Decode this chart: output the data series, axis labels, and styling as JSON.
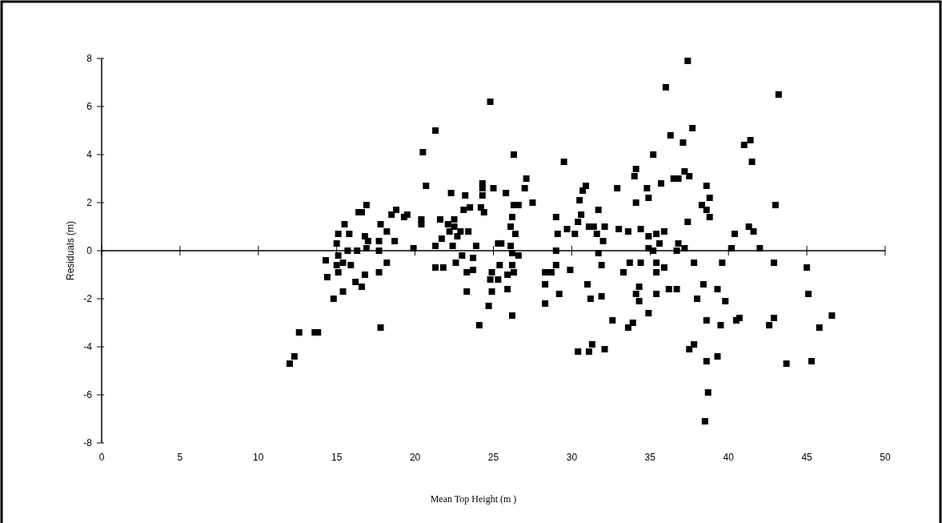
{
  "chart_data": {
    "type": "scatter",
    "xlabel": "Mean Top Height (m )",
    "ylabel": "Residuals (m)",
    "xlim": [
      0,
      50
    ],
    "xticks": [
      0,
      5,
      10,
      15,
      20,
      25,
      30,
      35,
      40,
      45,
      50
    ],
    "ylim": [
      -8,
      8
    ],
    "yticks": [
      -8,
      -6,
      -4,
      -2,
      0,
      2,
      4,
      6,
      8
    ],
    "marker": "square",
    "series": [
      {
        "color": "#000000",
        "x": [
          12.0,
          12.3,
          12.6,
          13.6,
          13.8,
          14.3,
          14.4,
          14.8,
          15.4,
          15.1,
          15.0,
          15.1,
          15.5,
          15.8,
          15.7,
          15.0,
          15.4,
          15.9,
          15.1,
          16.3,
          16.2,
          16.4,
          16.9,
          16.6,
          16.8,
          17.0,
          17.7,
          16.9,
          17.7,
          18.2,
          17.8,
          18.7,
          18.5,
          18.8,
          19.3,
          19.5,
          18.2,
          17.7,
          16.8,
          16.6,
          17.8,
          19.9,
          20.4,
          20.4,
          20.7,
          20.5,
          21.3,
          21.6,
          21.7,
          21.3,
          21.3,
          21.8,
          22.3,
          22.1,
          22.5,
          22.2,
          22.5,
          22.4,
          22.7,
          22.9,
          23.0,
          22.6,
          23.2,
          23.1,
          23.5,
          23.4,
          23.7,
          23.3,
          23.7,
          23.3,
          23.9,
          24.1,
          24.3,
          24.3,
          24.3,
          24.2,
          24.4,
          24.8,
          25.0,
          25.3,
          25.5,
          25.4,
          24.9,
          24.8,
          25.3,
          24.9,
          24.7,
          25.8,
          26.3,
          26.3,
          26.6,
          26.2,
          26.1,
          26.4,
          26.1,
          26.2,
          26.6,
          26.2,
          26.3,
          25.9,
          25.9,
          26.2,
          27.1,
          27.0,
          27.5,
          29.5,
          29.0,
          29.1,
          29.0,
          29.0,
          28.3,
          28.7,
          28.3,
          29.2,
          28.3,
          29.7,
          30.2,
          29.9,
          30.4,
          30.6,
          30.5,
          30.7,
          30.9,
          31.1,
          31.4,
          31.0,
          31.2,
          30.4,
          31.1,
          31.3,
          32.1,
          31.7,
          31.6,
          32.0,
          32.1,
          31.7,
          31.9,
          31.9,
          32.6,
          32.9,
          33.0,
          37.4,
          36.0,
          43.2,
          37.7,
          36.3,
          37.1,
          41.0,
          41.4,
          41.5,
          35.2,
          34.1,
          34.0,
          35.7,
          34.8,
          34.9,
          34.1,
          36.5,
          36.8,
          37.2,
          37.5,
          38.6,
          38.8,
          38.3,
          38.6,
          38.8,
          43.0,
          37.4,
          33.6,
          34.4,
          34.9,
          35.4,
          35.9,
          35.6,
          36.8,
          34.9,
          35.2,
          36.7,
          37.2,
          40.4,
          41.3,
          41.6,
          40.2,
          42.0,
          33.7,
          34.4,
          33.3,
          35.4,
          35.9,
          35.4,
          37.8,
          39.6,
          42.9,
          45.0,
          38.4,
          39.3,
          34.1,
          34.3,
          35.4,
          36.2,
          36.7,
          34.3,
          38.0,
          39.8,
          45.1,
          34.9,
          33.6,
          33.9,
          38.6,
          39.5,
          40.7,
          40.5,
          42.6,
          42.9,
          46.6,
          45.8,
          37.8,
          37.5,
          39.3,
          38.6,
          43.7,
          45.3,
          38.7,
          38.5
        ],
        "values": [
          -4.7,
          -4.4,
          -3.4,
          -3.4,
          -3.4,
          -0.4,
          -1.1,
          -2.0,
          -1.7,
          0.7,
          0.3,
          -0.2,
          1.1,
          0.7,
          0.0,
          -0.6,
          -0.5,
          -0.6,
          -0.9,
          0.0,
          -1.3,
          1.6,
          1.9,
          1.6,
          0.6,
          0.4,
          0.4,
          0.1,
          0.0,
          0.8,
          1.1,
          0.4,
          1.5,
          1.7,
          1.4,
          1.5,
          -0.5,
          -0.9,
          -1.0,
          -1.5,
          -3.2,
          0.1,
          1.1,
          1.3,
          2.7,
          4.1,
          5.0,
          1.3,
          0.5,
          0.2,
          -0.7,
          -0.7,
          2.4,
          1.1,
          1.3,
          0.8,
          1.0,
          0.2,
          0.6,
          0.8,
          -0.2,
          -0.5,
          2.3,
          1.7,
          1.8,
          0.8,
          -0.3,
          -0.9,
          -0.8,
          -1.7,
          0.2,
          -3.1,
          2.8,
          2.6,
          2.3,
          1.8,
          1.6,
          6.2,
          2.6,
          0.3,
          0.3,
          -0.6,
          -0.9,
          -1.2,
          -1.2,
          -1.7,
          -2.3,
          2.4,
          4.0,
          1.9,
          1.9,
          1.4,
          1.0,
          0.7,
          0.2,
          -0.1,
          -0.2,
          -0.6,
          -0.9,
          -1.0,
          -1.6,
          -2.7,
          3.0,
          2.6,
          2.0,
          3.7,
          1.4,
          0.7,
          0.0,
          -0.6,
          -0.9,
          -0.9,
          -1.4,
          -1.8,
          -2.2,
          0.9,
          0.7,
          -0.8,
          1.2,
          1.5,
          2.1,
          2.5,
          2.7,
          1.0,
          1.0,
          -1.4,
          -2.0,
          -4.2,
          -4.2,
          -3.9,
          -4.1,
          1.7,
          0.7,
          0.4,
          1.0,
          -0.1,
          -0.6,
          -1.9,
          -2.9,
          2.6,
          0.9,
          7.9,
          6.8,
          6.5,
          5.1,
          4.8,
          4.5,
          4.4,
          4.6,
          3.7,
          4.0,
          3.4,
          3.1,
          2.8,
          2.6,
          2.2,
          2.0,
          3.0,
          3.0,
          3.3,
          3.1,
          2.7,
          2.2,
          1.9,
          1.7,
          1.4,
          1.9,
          1.2,
          0.8,
          0.9,
          0.6,
          0.7,
          0.8,
          0.3,
          0.3,
          0.1,
          0.0,
          0.0,
          0.1,
          0.7,
          1.0,
          0.8,
          0.1,
          0.1,
          -0.5,
          -0.5,
          -0.9,
          -0.5,
          -0.7,
          -0.9,
          -0.5,
          -0.5,
          -0.5,
          -0.7,
          -1.4,
          -1.6,
          -1.8,
          -1.5,
          -1.8,
          -1.6,
          -1.6,
          -2.1,
          -2.0,
          -2.1,
          -1.8,
          -2.6,
          -3.2,
          -3.0,
          -2.9,
          -3.1,
          -2.8,
          -2.9,
          -3.1,
          -2.8,
          -2.7,
          -3.2,
          -3.9,
          -4.1,
          -4.4,
          -4.6,
          -4.7,
          -4.6,
          -5.9,
          -7.1
        ]
      }
    ]
  }
}
